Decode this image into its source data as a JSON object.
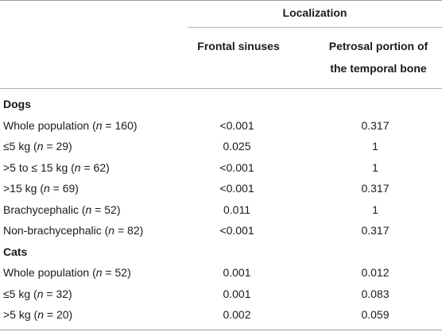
{
  "table": {
    "header": {
      "group_label": "Localization",
      "col1_label": "Frontal sinuses",
      "col2_line1": "Petrosal portion of",
      "col2_line2": "the temporal bone"
    },
    "rows": [
      {
        "type": "group",
        "label": "Dogs",
        "col1": "",
        "col2": ""
      },
      {
        "type": "data",
        "label": "Whole population (n = 160)",
        "col1": "<0.001",
        "col2": "0.317"
      },
      {
        "type": "data",
        "label": "≤5 kg (n = 29)",
        "col1": "0.025",
        "col2": "1"
      },
      {
        "type": "data",
        "label": ">5 to ≤ 15 kg (n = 62)",
        "col1": "<0.001",
        "col2": "1"
      },
      {
        "type": "data",
        "label": ">15 kg (n = 69)",
        "col1": "<0.001",
        "col2": "0.317"
      },
      {
        "type": "data",
        "label": "Brachycephalic (n = 52)",
        "col1": "0.011",
        "col2": "1"
      },
      {
        "type": "data",
        "label": "Non-brachycephalic (n = 82)",
        "col1": "<0.001",
        "col2": "0.317"
      },
      {
        "type": "group",
        "label": "Cats",
        "col1": "",
        "col2": ""
      },
      {
        "type": "data",
        "label": "Whole population (n = 52)",
        "col1": "0.001",
        "col2": "0.012"
      },
      {
        "type": "data",
        "label": "≤5 kg (n = 32)",
        "col1": "0.001",
        "col2": "0.083"
      },
      {
        "type": "data",
        "label": ">5 kg (n = 20)",
        "col1": "0.002",
        "col2": "0.059"
      }
    ]
  }
}
